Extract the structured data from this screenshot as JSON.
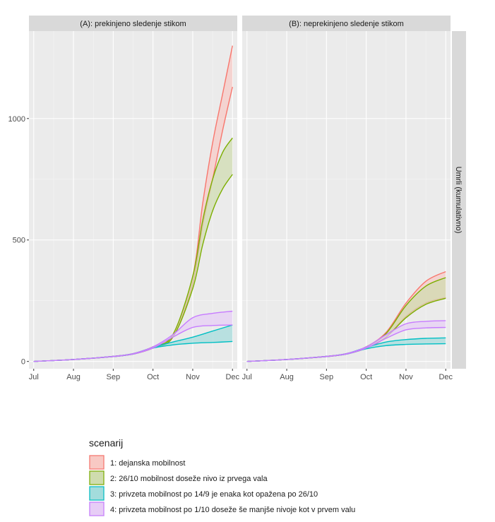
{
  "chart_data": {
    "type": "area",
    "y_label": "Umrli (kumulativno)",
    "x_ticks": [
      "Jul",
      "Aug",
      "Sep",
      "Oct",
      "Nov",
      "Dec"
    ],
    "y_ticks": [
      0,
      500,
      1000
    ],
    "ylim": [
      -30,
      1360
    ],
    "xlim": [
      -0.12,
      5.12
    ],
    "legend": {
      "title": "scenarij",
      "position": "bottom-left",
      "entries": [
        {
          "label": "1: dejanska mobilnost",
          "line": "#f8766d",
          "fill": "#f8c9c4"
        },
        {
          "label": "2: 26/10 mobilnost doseže nivo iz prvega vala",
          "line": "#7cae00",
          "fill": "#cfdcae"
        },
        {
          "label": "3: privzeta mobilnost po 14/9 je enaka kot opažena po 26/10",
          "line": "#00bfc4",
          "fill": "#a3dcdc"
        },
        {
          "label": "4: privzeta mobilnost po 1/10 doseže še manjše nivoje kot v prvem valu",
          "line": "#c77cff",
          "fill": "#e7cdf6"
        }
      ]
    },
    "panels": [
      {
        "title": "(A): prekinjeno sledenje stikom",
        "series": [
          {
            "name": "1: dejanska mobilnost",
            "x": [
              0,
              1,
              2,
              2.5,
              3,
              3.5,
              4,
              4.25,
              4.5,
              4.75,
              5
            ],
            "lower": [
              0,
              8,
              20,
              30,
              55,
              100,
              320,
              560,
              750,
              950,
              1130
            ],
            "upper": [
              0,
              8,
              21,
              32,
              60,
              110,
              350,
              650,
              900,
              1100,
              1300
            ]
          },
          {
            "name": "2: 26/10 mobilnost doseže nivo iz prvega vala",
            "x": [
              0,
              1,
              2,
              2.5,
              3,
              3.5,
              4,
              4.25,
              4.5,
              4.75,
              5
            ],
            "lower": [
              0,
              8,
              20,
              30,
              55,
              100,
              300,
              480,
              620,
              710,
              770
            ],
            "upper": [
              0,
              8,
              21,
              32,
              60,
              110,
              350,
              580,
              750,
              860,
              920
            ]
          },
          {
            "name": "3: privzeta mobilnost po 14/9 je enaka kot opažena po 26/10",
            "x": [
              0,
              1,
              2,
              2.5,
              3,
              3.5,
              4,
              4.5,
              5
            ],
            "lower": [
              0,
              8,
              20,
              30,
              55,
              68,
              75,
              78,
              82
            ],
            "upper": [
              0,
              8,
              21,
              32,
              58,
              80,
              100,
              125,
              150
            ]
          },
          {
            "name": "4: privzeta mobilnost po 1/10 doseže še manjše nivoje kot v prvem valu",
            "x": [
              0,
              1,
              2,
              2.5,
              3,
              3.5,
              4,
              4.5,
              5
            ],
            "lower": [
              0,
              8,
              20,
              30,
              55,
              100,
              140,
              148,
              150
            ],
            "upper": [
              0,
              8,
              21,
              32,
              60,
              110,
              180,
              198,
              207
            ]
          }
        ]
      },
      {
        "title": "(B): neprekinjeno sledenje stikom",
        "series": [
          {
            "name": "1: dejanska mobilnost",
            "x": [
              0,
              1,
              2,
              2.5,
              3,
              3.5,
              4,
              4.5,
              5
            ],
            "lower": [
              0,
              8,
              20,
              30,
              55,
              100,
              185,
              240,
              263
            ],
            "upper": [
              0,
              8,
              21,
              32,
              60,
              120,
              240,
              330,
              370
            ]
          },
          {
            "name": "2: 26/10 mobilnost doseže nivo iz prvega vala",
            "x": [
              0,
              1,
              2,
              2.5,
              3,
              3.5,
              4,
              4.5,
              5
            ],
            "lower": [
              0,
              8,
              20,
              30,
              55,
              100,
              180,
              235,
              260
            ],
            "upper": [
              0,
              8,
              21,
              32,
              60,
              115,
              230,
              310,
              345
            ]
          },
          {
            "name": "3: privzeta mobilnost po 14/9 je enaka kot opažena po 26/10",
            "x": [
              0,
              1,
              2,
              2.5,
              3,
              3.5,
              4,
              4.5,
              5
            ],
            "lower": [
              0,
              8,
              20,
              30,
              52,
              65,
              70,
              72,
              73
            ],
            "upper": [
              0,
              8,
              21,
              32,
              58,
              80,
              90,
              95,
              97
            ]
          },
          {
            "name": "4: privzeta mobilnost po 1/10 doseže še manjše nivoje kot v prvem valu",
            "x": [
              0,
              1,
              2,
              2.5,
              3,
              3.5,
              4,
              4.5,
              5
            ],
            "lower": [
              0,
              8,
              20,
              30,
              55,
              95,
              130,
              138,
              140
            ],
            "upper": [
              0,
              8,
              21,
              32,
              60,
              110,
              155,
              165,
              168
            ]
          }
        ]
      }
    ]
  }
}
